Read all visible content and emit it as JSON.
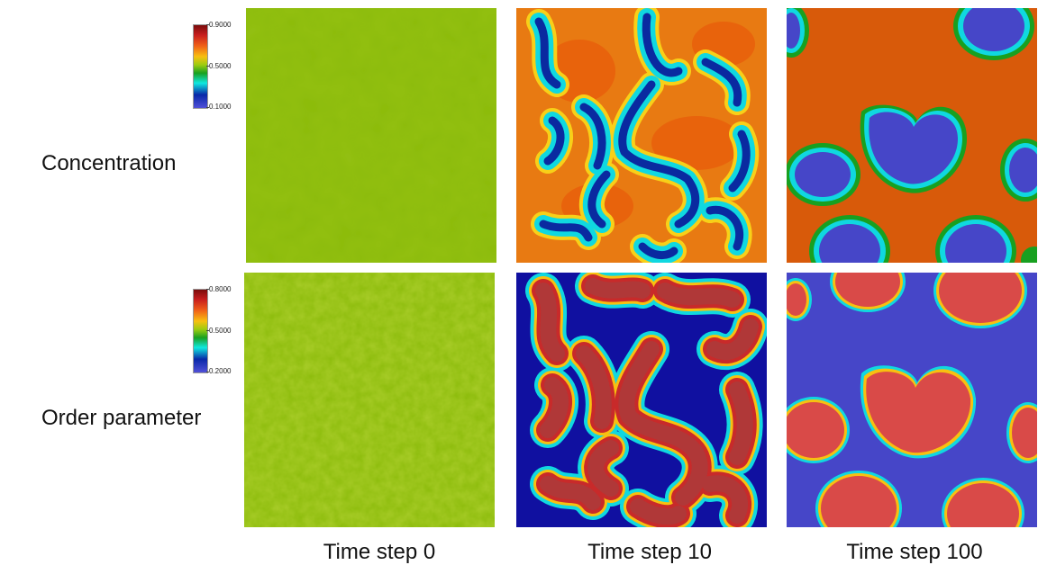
{
  "rows": [
    {
      "label": "Concentration",
      "colorbar": {
        "max": "0.9000",
        "mid": "0.5000",
        "min": "0.1000"
      }
    },
    {
      "label": "Order parameter",
      "colorbar": {
        "max": "0.8000",
        "mid": "0.5000",
        "min": "0.2000"
      }
    }
  ],
  "columns": [
    {
      "label": "Time step 0"
    },
    {
      "label": "Time step 10"
    },
    {
      "label": "Time step 100"
    }
  ],
  "colors": {
    "uniform_green": "#8bbb0a",
    "concentration_orange": "#e87a12",
    "concentration_deep_orange": "#d85a0a",
    "blue": "#4646c8",
    "red": "#d94a48",
    "cyan": "#20d8e0"
  }
}
